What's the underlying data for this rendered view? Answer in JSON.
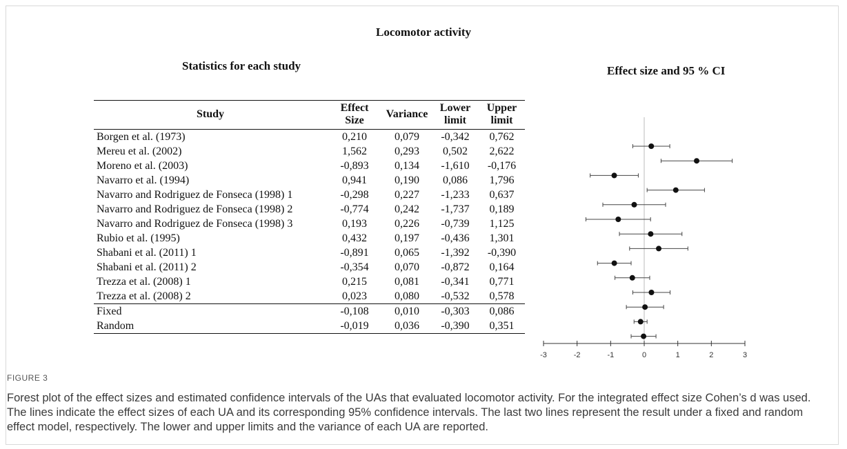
{
  "figure": {
    "title": "Locomotor activity",
    "table_title": "Statistics for each study",
    "plot_title": "Effect size and 95 % CI",
    "label": "FIGURE 3",
    "caption": "Forest plot of the effect sizes and estimated confidence intervals of the UAs that evaluated locomotor activity. For the integrated effect size Cohen’s d was used. The lines indicate the effect sizes of each UA and its corresponding 95% confidence intervals. The last two lines represent the result under a fixed and random effect model, respectively. The lower and upper limits and the variance of each UA are reported."
  },
  "table": {
    "headers": {
      "study": "Study",
      "effect_1": "Effect",
      "effect_2": "Size",
      "variance": "Variance",
      "lower_1": "Lower",
      "lower_2": "limit",
      "upper_1": "Upper",
      "upper_2": "limit"
    },
    "rows": [
      {
        "study": "Borgen et al. (1973)",
        "effect": "0,210",
        "variance": "0,079",
        "lower": "-0,342",
        "upper": "0,762"
      },
      {
        "study": "Mereu et al. (2002)",
        "effect": "1,562",
        "variance": "0,293",
        "lower": "0,502",
        "upper": "2,622"
      },
      {
        "study": "Moreno et al. (2003)",
        "effect": "-0,893",
        "variance": "0,134",
        "lower": "-1,610",
        "upper": "-0,176"
      },
      {
        "study": "Navarro et al. (1994)",
        "effect": "0,941",
        "variance": "0,190",
        "lower": "0,086",
        "upper": "1,796"
      },
      {
        "study": "Navarro and Rodriguez de Fonseca (1998) 1",
        "effect": "-0,298",
        "variance": "0,227",
        "lower": "-1,233",
        "upper": "0,637"
      },
      {
        "study": "Navarro and Rodriguez de Fonseca (1998) 2",
        "effect": "-0,774",
        "variance": "0,242",
        "lower": "-1,737",
        "upper": "0,189"
      },
      {
        "study": "Navarro and Rodriguez de Fonseca (1998) 3",
        "effect": "0,193",
        "variance": "0,226",
        "lower": "-0,739",
        "upper": "1,125"
      },
      {
        "study": "Rubio et al. (1995)",
        "effect": "0,432",
        "variance": "0,197",
        "lower": "-0,436",
        "upper": "1,301"
      },
      {
        "study": "Shabani et al. (2011) 1",
        "effect": "-0,891",
        "variance": "0,065",
        "lower": "-1,392",
        "upper": "-0,390"
      },
      {
        "study": "Shabani et al. (2011) 2",
        "effect": "-0,354",
        "variance": "0,070",
        "lower": "-0,872",
        "upper": "0,164"
      },
      {
        "study": "Trezza et al. (2008) 1",
        "effect": "0,215",
        "variance": "0,081",
        "lower": "-0,341",
        "upper": "0,771"
      },
      {
        "study": "Trezza et al. (2008) 2",
        "effect": "0,023",
        "variance": "0,080",
        "lower": "-0,532",
        "upper": "0,578"
      },
      {
        "study": "Fixed",
        "effect": "-0,108",
        "variance": "0,010",
        "lower": "-0,303",
        "upper": "0,086"
      },
      {
        "study": "Random",
        "effect": "-0,019",
        "variance": "0,036",
        "lower": "-0,390",
        "upper": "0,351"
      }
    ]
  },
  "chart_data": {
    "type": "forest",
    "xlim": [
      -3,
      3
    ],
    "x_ticks": [
      "-3",
      "-2",
      "-1",
      "0",
      "1",
      "2",
      "3"
    ],
    "reference_line": 0,
    "grid": false,
    "points": [
      {
        "est": 0.21,
        "lo": -0.342,
        "hi": 0.762
      },
      {
        "est": 1.562,
        "lo": 0.502,
        "hi": 2.622
      },
      {
        "est": -0.893,
        "lo": -1.61,
        "hi": -0.176
      },
      {
        "est": 0.941,
        "lo": 0.086,
        "hi": 1.796
      },
      {
        "est": -0.298,
        "lo": -1.233,
        "hi": 0.637
      },
      {
        "est": -0.774,
        "lo": -1.737,
        "hi": 0.189
      },
      {
        "est": 0.193,
        "lo": -0.739,
        "hi": 1.125
      },
      {
        "est": 0.432,
        "lo": -0.436,
        "hi": 1.301
      },
      {
        "est": -0.891,
        "lo": -1.392,
        "hi": -0.39
      },
      {
        "est": -0.354,
        "lo": -0.872,
        "hi": 0.164
      },
      {
        "est": 0.215,
        "lo": -0.341,
        "hi": 0.771
      },
      {
        "est": 0.023,
        "lo": -0.532,
        "hi": 0.578
      },
      {
        "est": -0.108,
        "lo": -0.303,
        "hi": 0.086
      },
      {
        "est": -0.019,
        "lo": -0.39,
        "hi": 0.351
      }
    ],
    "colors": {
      "marker": "#111111",
      "line": "#444444",
      "reference": "#bbbbbb",
      "axis": "#333333"
    }
  }
}
